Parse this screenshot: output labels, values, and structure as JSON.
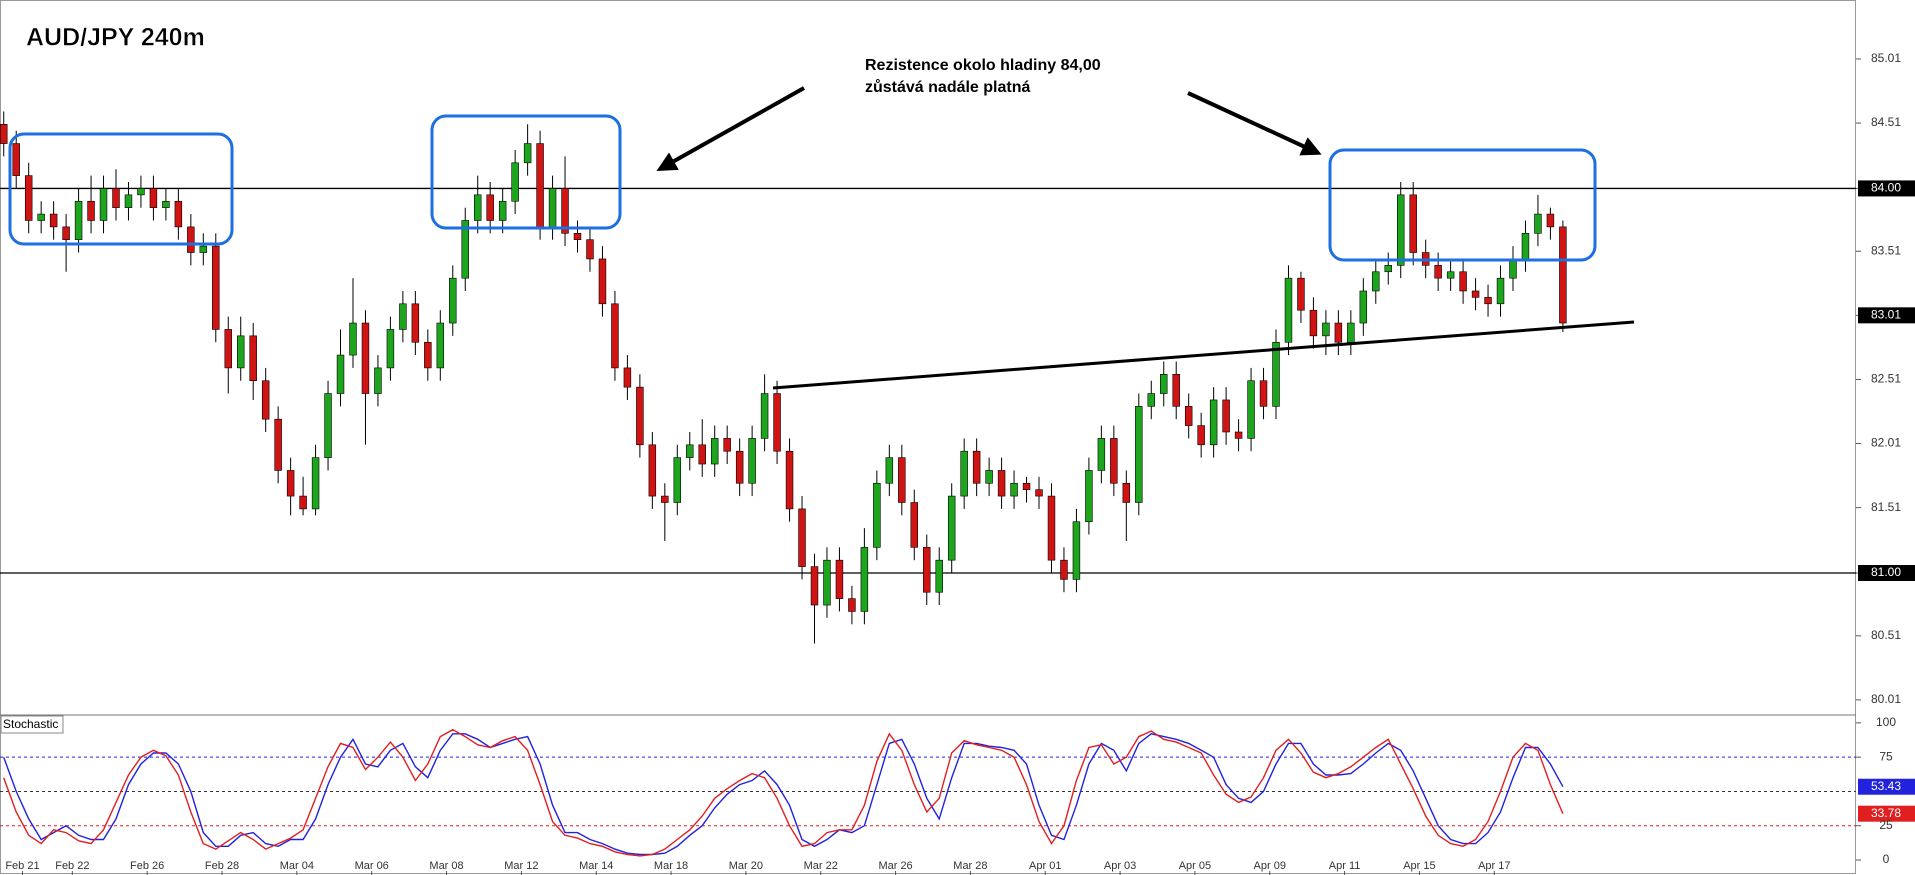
{
  "chart_data": [
    {
      "type": "candlestick",
      "title": "AUD/JPY 240m",
      "annotation": [
        "Rezistence okolo hladiny 84,00",
        "zůstává nadále platná"
      ],
      "up_color": "#1ea51e",
      "down_color": "#d01414",
      "open": [
        84.5,
        84.35,
        84.1,
        83.75,
        83.8,
        83.7,
        83.6,
        83.9,
        83.75,
        84.0,
        83.85,
        83.95,
        84.0,
        83.85,
        83.9,
        83.7,
        83.5,
        83.55,
        82.9,
        82.6,
        82.85,
        82.5,
        82.2,
        81.8,
        81.6,
        81.5,
        81.9,
        82.4,
        82.7,
        82.95,
        82.4,
        82.6,
        82.9,
        83.1,
        82.8,
        82.6,
        82.95,
        83.3,
        83.75,
        83.95,
        83.75,
        83.9,
        84.2,
        84.35,
        83.7,
        84.0,
        83.65,
        83.6,
        83.45,
        83.1,
        82.6,
        82.45,
        82.0,
        81.6,
        81.55,
        81.9,
        82.0,
        81.85,
        82.05,
        81.95,
        81.7,
        82.05,
        82.4,
        81.95,
        81.5,
        81.05,
        80.75,
        81.1,
        80.8,
        80.7,
        81.2,
        81.7,
        81.9,
        81.55,
        81.2,
        80.85,
        81.1,
        81.6,
        81.95,
        81.7,
        81.8,
        81.6,
        81.7,
        81.65,
        81.6,
        81.1,
        80.95,
        81.4,
        81.8,
        82.05,
        81.7,
        81.55,
        82.3,
        82.4,
        82.55,
        82.3,
        82.15,
        82.0,
        82.35,
        82.1,
        82.05,
        82.5,
        82.3,
        82.8,
        83.3,
        83.05,
        82.85,
        82.95,
        82.8,
        82.95,
        83.2,
        83.35,
        83.4,
        83.95,
        83.5,
        83.4,
        83.3,
        83.35,
        83.2,
        83.15,
        83.1,
        83.3,
        83.45,
        83.65,
        83.8,
        83.7
      ],
      "high": [
        84.6,
        84.45,
        84.2,
        83.9,
        83.9,
        83.8,
        84.0,
        84.1,
        84.1,
        84.15,
        84.05,
        84.1,
        84.1,
        84.0,
        84.0,
        83.8,
        83.65,
        83.65,
        83.0,
        83.0,
        82.95,
        82.6,
        82.3,
        81.9,
        81.75,
        82.0,
        82.5,
        82.9,
        83.3,
        83.05,
        82.7,
        83.0,
        83.2,
        83.2,
        82.9,
        83.05,
        83.4,
        83.85,
        84.1,
        84.05,
        84.0,
        84.3,
        84.5,
        84.45,
        84.1,
        84.25,
        83.75,
        83.7,
        83.55,
        83.2,
        82.7,
        82.55,
        82.1,
        81.7,
        82.0,
        82.1,
        82.2,
        82.15,
        82.15,
        82.05,
        82.15,
        82.55,
        82.5,
        82.05,
        81.6,
        81.15,
        81.2,
        81.2,
        80.9,
        81.35,
        81.8,
        82.0,
        82.0,
        81.65,
        81.3,
        81.2,
        81.7,
        82.05,
        82.05,
        81.9,
        81.9,
        81.8,
        81.75,
        81.75,
        81.7,
        81.2,
        81.5,
        81.9,
        82.15,
        82.15,
        81.8,
        82.4,
        82.5,
        82.65,
        82.65,
        82.4,
        82.25,
        82.45,
        82.45,
        82.2,
        82.6,
        82.6,
        82.9,
        83.4,
        83.35,
        83.15,
        83.05,
        83.05,
        83.05,
        83.3,
        83.45,
        83.5,
        84.05,
        84.05,
        83.6,
        83.5,
        83.45,
        83.45,
        83.3,
        83.25,
        83.4,
        83.55,
        83.75,
        83.95,
        83.85,
        83.75
      ],
      "low": [
        84.25,
        84.0,
        83.65,
        83.65,
        83.6,
        83.35,
        83.5,
        83.65,
        83.65,
        83.75,
        83.75,
        83.85,
        83.75,
        83.75,
        83.6,
        83.4,
        83.4,
        82.8,
        82.4,
        82.5,
        82.35,
        82.1,
        81.7,
        81.45,
        81.45,
        81.45,
        81.8,
        82.3,
        82.6,
        82.0,
        82.3,
        82.5,
        82.8,
        82.7,
        82.5,
        82.5,
        82.85,
        83.2,
        83.65,
        83.65,
        83.65,
        83.8,
        84.1,
        83.6,
        83.6,
        83.55,
        83.5,
        83.35,
        83.0,
        82.5,
        82.35,
        81.9,
        81.5,
        81.25,
        81.45,
        81.8,
        81.75,
        81.75,
        81.85,
        81.6,
        81.6,
        81.95,
        81.85,
        81.4,
        80.95,
        80.45,
        80.65,
        80.7,
        80.6,
        80.6,
        81.1,
        81.6,
        81.45,
        81.1,
        80.75,
        80.75,
        81.0,
        81.5,
        81.6,
        81.6,
        81.5,
        81.5,
        81.55,
        81.5,
        81.0,
        80.85,
        80.85,
        81.3,
        81.7,
        81.6,
        81.25,
        81.45,
        82.2,
        82.3,
        82.2,
        82.05,
        81.9,
        81.9,
        82.0,
        81.95,
        81.95,
        82.2,
        82.2,
        82.7,
        82.95,
        82.75,
        82.7,
        82.7,
        82.7,
        82.85,
        83.1,
        83.25,
        83.3,
        83.4,
        83.3,
        83.2,
        83.2,
        83.1,
        83.05,
        83.0,
        83.0,
        83.2,
        83.35,
        83.55,
        83.6,
        82.88
      ],
      "close": [
        84.35,
        84.1,
        83.75,
        83.8,
        83.7,
        83.6,
        83.9,
        83.75,
        84.0,
        83.85,
        83.95,
        84.0,
        83.85,
        83.9,
        83.7,
        83.5,
        83.55,
        82.9,
        82.6,
        82.85,
        82.5,
        82.2,
        81.8,
        81.6,
        81.5,
        81.9,
        82.4,
        82.7,
        82.95,
        82.4,
        82.6,
        82.9,
        83.1,
        82.8,
        82.6,
        82.95,
        83.3,
        83.75,
        83.95,
        83.75,
        83.9,
        84.2,
        84.35,
        83.7,
        84.0,
        83.65,
        83.6,
        83.45,
        83.1,
        82.6,
        82.45,
        82.0,
        81.6,
        81.55,
        81.9,
        82.0,
        81.85,
        82.05,
        81.95,
        81.7,
        82.05,
        82.4,
        81.95,
        81.5,
        81.05,
        80.75,
        81.1,
        80.8,
        80.7,
        81.2,
        81.7,
        81.9,
        81.55,
        81.2,
        80.85,
        81.1,
        81.6,
        81.95,
        81.7,
        81.8,
        81.6,
        81.7,
        81.65,
        81.6,
        81.1,
        80.95,
        81.4,
        81.8,
        82.05,
        81.7,
        81.55,
        82.3,
        82.4,
        82.55,
        82.3,
        82.15,
        82.0,
        82.35,
        82.1,
        82.05,
        82.5,
        82.3,
        82.8,
        83.3,
        83.05,
        82.85,
        82.95,
        82.8,
        82.95,
        83.2,
        83.35,
        83.4,
        83.95,
        83.5,
        83.4,
        83.3,
        83.35,
        83.2,
        83.15,
        83.1,
        83.3,
        83.45,
        83.65,
        83.8,
        83.7,
        82.95
      ],
      "xlim": [
        -0.3,
        148.5
      ],
      "xticks": [
        {
          "value": 1.5,
          "label": "Feb 21"
        },
        {
          "value": 5.5,
          "label": "Feb 22"
        },
        {
          "value": 11.5,
          "label": "Feb 26"
        },
        {
          "value": 17.5,
          "label": "Feb 28"
        },
        {
          "value": 23.5,
          "label": "Mar 04"
        },
        {
          "value": 29.5,
          "label": "Mar 06"
        },
        {
          "value": 35.5,
          "label": "Mar 08"
        },
        {
          "value": 41.5,
          "label": "Mar 12"
        },
        {
          "value": 47.5,
          "label": "Mar 14"
        },
        {
          "value": 53.5,
          "label": "Mar 18"
        },
        {
          "value": 59.5,
          "label": "Mar 20"
        },
        {
          "value": 65.5,
          "label": "Mar 22"
        },
        {
          "value": 71.5,
          "label": "Mar 26"
        },
        {
          "value": 77.5,
          "label": "Mar 28"
        },
        {
          "value": 83.5,
          "label": "Apr 01"
        },
        {
          "value": 89.5,
          "label": "Apr 03"
        },
        {
          "value": 95.5,
          "label": "Apr 05"
        },
        {
          "value": 101.5,
          "label": "Apr 09"
        },
        {
          "value": 107.5,
          "label": "Apr 11"
        },
        {
          "value": 113.5,
          "label": "Apr 15"
        },
        {
          "value": 119.5,
          "label": "Apr 17"
        }
      ],
      "ylim": [
        79.9,
        85.47
      ],
      "yticks": [
        85.01,
        84.51,
        {
          "value": 84,
          "label": "84.00",
          "highlight": true
        },
        83.51,
        {
          "value": 83.01,
          "label": "83.01",
          "highlight": true
        },
        82.51,
        82.01,
        81.51,
        {
          "value": 81,
          "label": "81.00",
          "highlight": true
        },
        80.51,
        80.01
      ],
      "hlines": [
        84,
        81
      ]
    },
    {
      "type": "line",
      "title": "Stochastic",
      "series": [
        {
          "color": "#2222dd",
          "values": [
            75,
            50,
            30,
            15,
            20,
            25,
            18,
            15,
            15,
            30,
            55,
            70,
            78,
            78,
            70,
            50,
            20,
            10,
            10,
            18,
            20,
            12,
            10,
            15,
            15,
            30,
            55,
            75,
            88,
            70,
            68,
            80,
            85,
            68,
            60,
            80,
            92,
            92,
            88,
            82,
            85,
            88,
            90,
            70,
            40,
            20,
            20,
            15,
            12,
            8,
            5,
            4,
            4,
            5,
            10,
            18,
            25,
            38,
            48,
            55,
            58,
            65,
            55,
            40,
            15,
            10,
            15,
            22,
            20,
            25,
            55,
            85,
            88,
            70,
            45,
            30,
            60,
            85,
            85,
            83,
            82,
            80,
            70,
            40,
            18,
            15,
            40,
            70,
            85,
            80,
            65,
            85,
            92,
            90,
            88,
            85,
            80,
            75,
            55,
            45,
            42,
            50,
            70,
            85,
            85,
            70,
            62,
            62,
            63,
            70,
            78,
            85,
            80,
            65,
            45,
            25,
            15,
            12,
            12,
            20,
            35,
            60,
            82,
            82,
            70,
            53.43
          ]
        },
        {
          "color": "#e02020",
          "values": [
            60,
            35,
            18,
            12,
            22,
            20,
            14,
            12,
            22,
            42,
            62,
            75,
            80,
            76,
            62,
            35,
            12,
            8,
            14,
            20,
            15,
            8,
            12,
            16,
            22,
            45,
            68,
            85,
            82,
            66,
            75,
            86,
            75,
            58,
            70,
            90,
            95,
            90,
            84,
            82,
            87,
            90,
            80,
            55,
            28,
            18,
            16,
            12,
            10,
            6,
            4,
            3,
            4,
            8,
            15,
            22,
            32,
            45,
            52,
            58,
            63,
            60,
            45,
            25,
            10,
            12,
            20,
            22,
            22,
            40,
            72,
            92,
            80,
            55,
            35,
            45,
            78,
            87,
            84,
            82,
            80,
            75,
            55,
            28,
            12,
            25,
            58,
            82,
            84,
            70,
            75,
            90,
            94,
            88,
            86,
            82,
            78,
            62,
            48,
            42,
            46,
            60,
            80,
            88,
            78,
            64,
            60,
            63,
            68,
            75,
            82,
            88,
            70,
            52,
            32,
            18,
            12,
            10,
            15,
            28,
            50,
            75,
            85,
            80,
            55,
            33.78
          ]
        }
      ],
      "ylim": [
        -8,
        105
      ],
      "yticks": [
        100,
        75,
        25,
        0
      ],
      "levels": [
        {
          "value": 75,
          "color": "#2222dd"
        },
        {
          "value": 50,
          "color": "#333333"
        },
        {
          "value": 25,
          "color": "#e02020"
        }
      ]
    }
  ]
}
